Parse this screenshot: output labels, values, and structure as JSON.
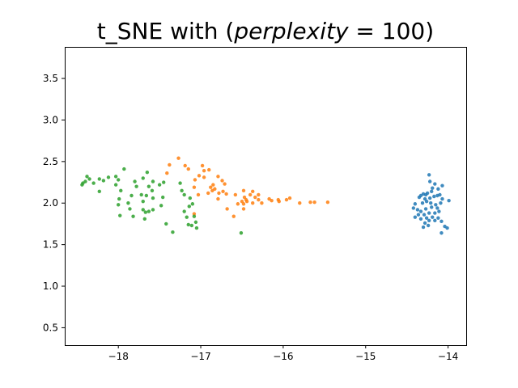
{
  "chart_data": {
    "type": "scatter",
    "title": {
      "prefix": "t_SNE with (",
      "variable": "perplexity",
      "operator": " = ",
      "number": "100",
      "suffix": ")"
    },
    "xlabel": "",
    "ylabel": "",
    "xlim": [
      -18.65,
      -13.78
    ],
    "ylim": [
      0.29,
      3.88
    ],
    "x_ticks": [
      -18,
      -17,
      -16,
      -15,
      -14
    ],
    "x_tick_labels": [
      "−18",
      "−17",
      "−16",
      "−15",
      "−14"
    ],
    "y_ticks": [
      0.5,
      1.0,
      1.5,
      2.0,
      2.5,
      3.0,
      3.5
    ],
    "y_tick_labels": [
      "0.5",
      "1.0",
      "1.5",
      "2.0",
      "2.5",
      "3.0",
      "3.5"
    ],
    "grid": false,
    "legend": "none",
    "series": [
      {
        "color": "#1f77b4",
        "points": [
          [
            -14.23,
            2.34
          ],
          [
            -14.22,
            2.26
          ],
          [
            -14.16,
            2.23
          ],
          [
            -14.07,
            2.21
          ],
          [
            -14.12,
            2.17
          ],
          [
            -14.2,
            2.14
          ],
          [
            -14.25,
            2.12
          ],
          [
            -14.27,
            2.1
          ],
          [
            -14.3,
            2.11
          ],
          [
            -14.33,
            2.09
          ],
          [
            -14.35,
            2.07
          ],
          [
            -14.28,
            2.05
          ],
          [
            -14.22,
            2.06
          ],
          [
            -14.17,
            2.08
          ],
          [
            -14.13,
            2.09
          ],
          [
            -14.1,
            2.1
          ],
          [
            -14.07,
            2.05
          ],
          [
            -13.99,
            2.03
          ],
          [
            -14.09,
            2.0
          ],
          [
            -14.15,
            1.98
          ],
          [
            -14.21,
            2.0
          ],
          [
            -14.26,
            2.02
          ],
          [
            -14.31,
            2.0
          ],
          [
            -14.4,
            1.99
          ],
          [
            -14.42,
            1.94
          ],
          [
            -14.37,
            1.92
          ],
          [
            -14.33,
            1.9
          ],
          [
            -14.27,
            1.93
          ],
          [
            -14.2,
            1.95
          ],
          [
            -14.13,
            1.94
          ],
          [
            -14.11,
            1.9
          ],
          [
            -14.16,
            1.88
          ],
          [
            -14.23,
            1.88
          ],
          [
            -14.29,
            1.86
          ],
          [
            -14.36,
            1.86
          ],
          [
            -14.4,
            1.83
          ],
          [
            -14.33,
            1.81
          ],
          [
            -14.26,
            1.82
          ],
          [
            -14.19,
            1.83
          ],
          [
            -14.12,
            1.82
          ],
          [
            -14.16,
            1.79
          ],
          [
            -14.23,
            1.79
          ],
          [
            -14.28,
            1.76
          ],
          [
            -14.3,
            1.71
          ],
          [
            -14.24,
            1.73
          ],
          [
            -14.08,
            1.78
          ],
          [
            -14.04,
            1.72
          ],
          [
            -14.01,
            1.7
          ],
          [
            -14.08,
            1.64
          ],
          [
            -14.19,
            2.18
          ]
        ]
      },
      {
        "color": "#ff7f0e",
        "points": [
          [
            -17.27,
            2.54
          ],
          [
            -17.19,
            2.45
          ],
          [
            -17.15,
            2.41
          ],
          [
            -17.38,
            2.46
          ],
          [
            -17.41,
            2.36
          ],
          [
            -16.98,
            2.45
          ],
          [
            -16.96,
            2.39
          ],
          [
            -16.9,
            2.4
          ],
          [
            -17.02,
            2.33
          ],
          [
            -16.96,
            2.31
          ],
          [
            -17.07,
            2.28
          ],
          [
            -16.79,
            2.32
          ],
          [
            -16.74,
            2.27
          ],
          [
            -16.71,
            2.23
          ],
          [
            -16.85,
            2.22
          ],
          [
            -16.88,
            2.19
          ],
          [
            -16.83,
            2.17
          ],
          [
            -16.86,
            2.15
          ],
          [
            -16.91,
            2.12
          ],
          [
            -16.78,
            2.12
          ],
          [
            -16.73,
            2.14
          ],
          [
            -16.69,
            2.11
          ],
          [
            -17.08,
            2.19
          ],
          [
            -17.03,
            2.1
          ],
          [
            -16.79,
            2.05
          ],
          [
            -16.58,
            2.1
          ],
          [
            -16.48,
            2.15
          ],
          [
            -16.37,
            2.14
          ],
          [
            -16.4,
            2.1
          ],
          [
            -16.47,
            2.07
          ],
          [
            -16.45,
            2.04
          ],
          [
            -16.3,
            2.1
          ],
          [
            -16.34,
            2.07
          ],
          [
            -16.3,
            2.04
          ],
          [
            -16.44,
            2.02
          ],
          [
            -16.37,
            2.0
          ],
          [
            -16.48,
            1.99
          ],
          [
            -16.5,
            2.02
          ],
          [
            -16.26,
            2.0
          ],
          [
            -16.17,
            2.05
          ],
          [
            -16.14,
            2.03
          ],
          [
            -16.06,
            2.04
          ],
          [
            -16.05,
            2.02
          ],
          [
            -15.96,
            2.04
          ],
          [
            -15.92,
            2.06
          ],
          [
            -15.8,
            2.0
          ],
          [
            -15.67,
            2.01
          ],
          [
            -15.62,
            2.01
          ],
          [
            -15.46,
            2.01
          ],
          [
            -16.55,
            1.99
          ],
          [
            -16.68,
            1.93
          ],
          [
            -16.6,
            1.84
          ],
          [
            -16.48,
            1.93
          ],
          [
            -17.08,
            1.87
          ]
        ]
      },
      {
        "color": "#2ca02c",
        "points": [
          [
            -18.38,
            2.32
          ],
          [
            -18.35,
            2.29
          ],
          [
            -18.4,
            2.26
          ],
          [
            -18.43,
            2.24
          ],
          [
            -18.44,
            2.22
          ],
          [
            -18.3,
            2.24
          ],
          [
            -18.23,
            2.29
          ],
          [
            -18.18,
            2.27
          ],
          [
            -18.12,
            2.31
          ],
          [
            -18.03,
            2.32
          ],
          [
            -18.0,
            2.28
          ],
          [
            -18.03,
            2.22
          ],
          [
            -17.93,
            2.41
          ],
          [
            -17.8,
            2.26
          ],
          [
            -17.78,
            2.2
          ],
          [
            -17.7,
            2.3
          ],
          [
            -17.65,
            2.37
          ],
          [
            -17.58,
            2.26
          ],
          [
            -17.63,
            2.2
          ],
          [
            -17.5,
            2.22
          ],
          [
            -17.45,
            2.25
          ],
          [
            -18.23,
            2.14
          ],
          [
            -17.97,
            2.15
          ],
          [
            -17.99,
            2.05
          ],
          [
            -18.0,
            1.98
          ],
          [
            -17.84,
            2.09
          ],
          [
            -17.88,
            2.0
          ],
          [
            -17.86,
            1.93
          ],
          [
            -17.72,
            2.1
          ],
          [
            -17.7,
            2.02
          ],
          [
            -17.66,
            2.09
          ],
          [
            -17.59,
            2.15
          ],
          [
            -17.58,
            2.06
          ],
          [
            -17.46,
            2.07
          ],
          [
            -17.7,
            1.92
          ],
          [
            -17.67,
            1.89
          ],
          [
            -17.63,
            1.9
          ],
          [
            -17.58,
            1.92
          ],
          [
            -17.48,
            1.97
          ],
          [
            -17.25,
            2.24
          ],
          [
            -17.23,
            2.15
          ],
          [
            -17.2,
            2.1
          ],
          [
            -17.13,
            2.06
          ],
          [
            -17.1,
            1.99
          ],
          [
            -17.14,
            1.96
          ],
          [
            -17.2,
            1.9
          ],
          [
            -17.08,
            1.84
          ],
          [
            -17.17,
            1.83
          ],
          [
            -17.11,
            1.73
          ],
          [
            -17.05,
            1.7
          ],
          [
            -17.34,
            1.65
          ],
          [
            -16.51,
            1.64
          ],
          [
            -17.98,
            1.85
          ],
          [
            -17.82,
            1.84
          ],
          [
            -17.68,
            1.81
          ],
          [
            -17.42,
            1.75
          ],
          [
            -17.15,
            1.74
          ],
          [
            -17.06,
            1.77
          ]
        ]
      }
    ]
  }
}
